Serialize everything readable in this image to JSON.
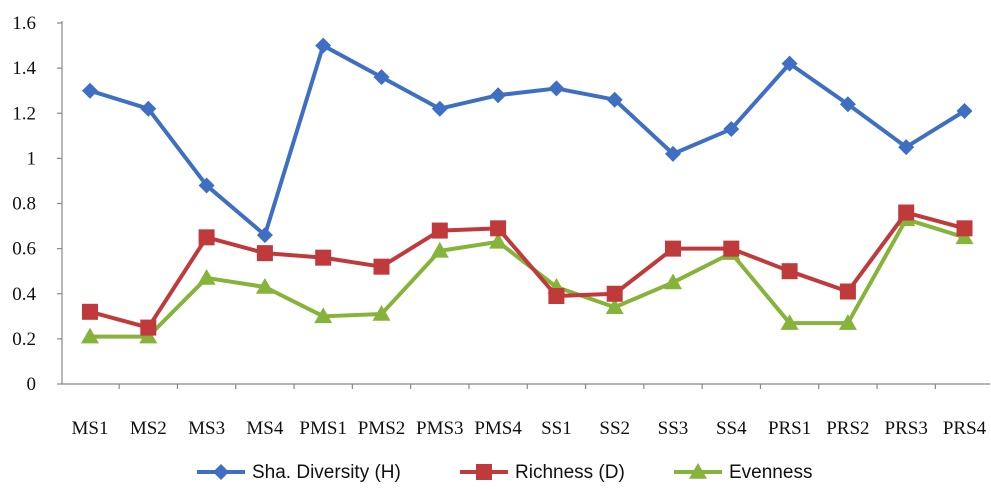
{
  "chart_data": {
    "type": "line",
    "title": "",
    "xlabel": "",
    "ylabel": "",
    "ylim": [
      0,
      1.6
    ],
    "yticks": [
      "0",
      "0.2",
      "0.4",
      "0.6",
      "0.8",
      "1",
      "1.2",
      "1.4",
      "1.6"
    ],
    "categories": [
      "MS1",
      "MS2",
      "MS3",
      "MS4",
      "PMS1",
      "PMS2",
      "PMS3",
      "PMS4",
      "SS1",
      "SS2",
      "SS3",
      "SS4",
      "PRS1",
      "PRS2",
      "PRS3",
      "PRS4"
    ],
    "grid": false,
    "legend_position": "bottom",
    "series": [
      {
        "name": "Sha. Diversity (H)",
        "color": "#3F6FC2",
        "marker": "diamond",
        "values": [
          1.3,
          1.22,
          0.88,
          0.66,
          1.5,
          1.36,
          1.22,
          1.28,
          1.31,
          1.26,
          1.02,
          1.13,
          1.42,
          1.24,
          1.05,
          1.21
        ]
      },
      {
        "name": "Richness (D)",
        "color": "#C0393B",
        "marker": "square",
        "values": [
          0.32,
          0.25,
          0.65,
          0.58,
          0.56,
          0.52,
          0.68,
          0.69,
          0.39,
          0.4,
          0.6,
          0.6,
          0.5,
          0.41,
          0.76,
          0.69
        ]
      },
      {
        "name": "Evenness",
        "color": "#86B33A",
        "marker": "triangle",
        "values": [
          0.21,
          0.21,
          0.47,
          0.43,
          0.3,
          0.31,
          0.59,
          0.63,
          0.43,
          0.34,
          0.45,
          0.58,
          0.27,
          0.27,
          0.73,
          0.65
        ]
      }
    ]
  }
}
